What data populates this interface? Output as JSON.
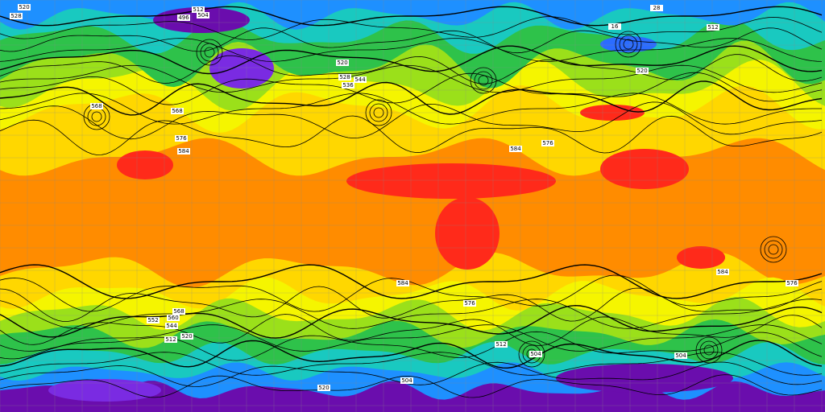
{
  "map": {
    "contour_labels": [
      "520",
      "528",
      "512",
      "504",
      "496",
      "520",
      "528",
      "536",
      "544",
      "568",
      "576",
      "584",
      "568",
      "584",
      "576",
      "576",
      "584",
      "584",
      "576",
      "568",
      "560",
      "552",
      "544",
      "520",
      "512",
      "504",
      "504",
      "504",
      "520",
      "512",
      "16",
      "28",
      "512",
      "520"
    ]
  }
}
